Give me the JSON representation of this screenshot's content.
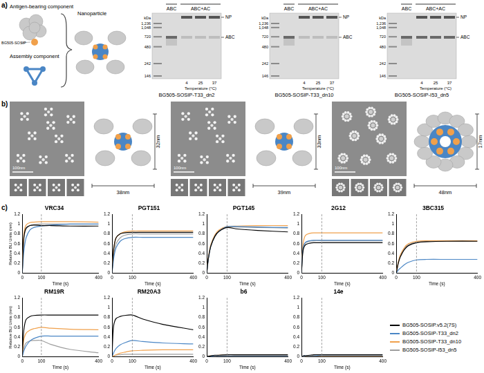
{
  "figure": {
    "a": {
      "label": "a)",
      "schematic": {
        "antigen_component": "Antigen-bearing component",
        "antigen_name": "BG505-SOSIP",
        "assembly_component": "Assembly component",
        "product": "Nanoparticle"
      },
      "gels": [
        {
          "caption": "BG505-SOSIP-T33_dn2",
          "ladder_unit": "kDa",
          "ladder": [
            {
              "value": 1236,
              "label": "1,236"
            },
            {
              "value": 1048,
              "label": "1,048"
            },
            720,
            480,
            242,
            146
          ],
          "lanes": [
            "ABC",
            "ABC+AC"
          ],
          "temperatures": [
            4,
            25,
            37
          ],
          "temperature_label": "Temperature (°C)",
          "bands": [
            "NP",
            "ABC"
          ]
        },
        {
          "caption": "BG505-SOSIP-T33_dn10",
          "ladder_unit": "kDa",
          "ladder": [
            {
              "value": 1236,
              "label": "1,236"
            },
            {
              "value": 1048,
              "label": "1,048"
            },
            720,
            480,
            242,
            146
          ],
          "lanes": [
            "ABC",
            "ABC+AC"
          ],
          "temperatures": [
            4,
            25,
            37
          ],
          "temperature_label": "Temperature (°C)",
          "bands": [
            "NP",
            "ABC"
          ]
        },
        {
          "caption": "BG505-SOSIP-I53_dn5",
          "ladder_unit": "kDa",
          "ladder": [
            {
              "value": 1236,
              "label": "1,236"
            },
            {
              "value": 1048,
              "label": "1,048"
            },
            720,
            480,
            242,
            146
          ],
          "lanes": [
            "ABC",
            "ABC+AC"
          ],
          "temperatures": [
            4,
            25,
            37
          ],
          "temperature_label": "Temperature (°C)",
          "bands": [
            "NP",
            "ABC"
          ]
        }
      ]
    },
    "b": {
      "label": "b)",
      "micrographs": [
        {
          "scale_bar": "100nm",
          "height": "32nm",
          "width": "38nm"
        },
        {
          "scale_bar": "100nm",
          "height": "33nm",
          "width": "39nm"
        },
        {
          "scale_bar": "100nm",
          "height": "17nm",
          "width": "48nm"
        }
      ]
    },
    "c": {
      "label": "c)"
    }
  },
  "chart_data": [
    {
      "type": "line",
      "title": "VRC34",
      "x_label": "Time (s)",
      "y_label": "Relative BLI Units (nm)",
      "x": [
        0,
        5,
        10,
        20,
        40,
        60,
        100,
        150,
        250,
        400
      ],
      "xlim": [
        0,
        400
      ],
      "xticks": [
        0,
        100,
        400
      ],
      "ylim": [
        0,
        1.2
      ],
      "yticks": [
        0,
        0.2,
        0.4,
        0.6,
        0.8,
        1,
        1.2
      ],
      "vline": 100,
      "series": [
        {
          "name": "BG505-SOSIP.v5.2(7S)",
          "color": "#000000",
          "values": [
            0,
            0.55,
            0.78,
            0.92,
            0.97,
            0.98,
            0.97,
            0.97,
            0.96,
            0.96
          ]
        },
        {
          "name": "BG505-SOSIP-T33_dn2",
          "color": "#4a86c5",
          "values": [
            0,
            0.3,
            0.5,
            0.72,
            0.88,
            0.93,
            0.96,
            0.98,
            1.0,
            1.0
          ]
        },
        {
          "name": "BG505-SOSIP-T33_dn10",
          "color": "#f0a04b",
          "values": [
            0,
            0.6,
            0.85,
            0.98,
            1.03,
            1.04,
            1.05,
            1.05,
            1.05,
            1.04
          ]
        },
        {
          "name": "BG505-SOSIP-I53_dn5",
          "color": "#9e9e9e",
          "values": [
            0,
            0.5,
            0.75,
            0.9,
            0.97,
            0.99,
            1.0,
            1.0,
            1.0,
            1.0
          ]
        }
      ]
    },
    {
      "type": "line",
      "title": "PGT151",
      "x_label": "Time (s)",
      "x": [
        0,
        5,
        10,
        20,
        40,
        60,
        100,
        150,
        250,
        400
      ],
      "xlim": [
        0,
        400
      ],
      "xticks": [
        0,
        100,
        400
      ],
      "ylim": [
        0,
        1.2
      ],
      "yticks": [
        0,
        0.2,
        0.4,
        0.6,
        0.8,
        1,
        1.2
      ],
      "vline": 100,
      "series": [
        {
          "name": "BG505-SOSIP.v5.2(7S)",
          "color": "#000000",
          "values": [
            0,
            0.35,
            0.55,
            0.72,
            0.8,
            0.82,
            0.83,
            0.83,
            0.83,
            0.83
          ]
        },
        {
          "name": "BG505-SOSIP-T33_dn2",
          "color": "#4a86c5",
          "values": [
            0,
            0.2,
            0.35,
            0.52,
            0.65,
            0.7,
            0.73,
            0.73,
            0.73,
            0.73
          ]
        },
        {
          "name": "BG505-SOSIP-T33_dn10",
          "color": "#f0a04b",
          "values": [
            0,
            0.35,
            0.55,
            0.72,
            0.8,
            0.84,
            0.86,
            0.86,
            0.86,
            0.86
          ]
        },
        {
          "name": "BG505-SOSIP-I53_dn5",
          "color": "#9e9e9e",
          "values": [
            0,
            0.25,
            0.42,
            0.6,
            0.72,
            0.77,
            0.8,
            0.8,
            0.8,
            0.8
          ]
        }
      ]
    },
    {
      "type": "line",
      "title": "PGT145",
      "x_label": "Time (s)",
      "x": [
        0,
        5,
        10,
        20,
        40,
        60,
        100,
        150,
        250,
        400
      ],
      "xlim": [
        0,
        400
      ],
      "xticks": [
        0,
        100,
        400
      ],
      "ylim": [
        0,
        1.2
      ],
      "yticks": [
        0,
        0.2,
        0.4,
        0.6,
        0.8,
        1,
        1.2
      ],
      "vline": 100,
      "series": [
        {
          "name": "BG505-SOSIP.v5.2(7S)",
          "color": "#000000",
          "values": [
            0,
            0.2,
            0.35,
            0.55,
            0.75,
            0.85,
            0.93,
            0.9,
            0.87,
            0.84
          ]
        },
        {
          "name": "BG505-SOSIP-T33_dn2",
          "color": "#4a86c5",
          "values": [
            0,
            0.2,
            0.35,
            0.55,
            0.75,
            0.85,
            0.95,
            0.95,
            0.94,
            0.93
          ]
        },
        {
          "name": "BG505-SOSIP-T33_dn10",
          "color": "#f0a04b",
          "values": [
            0,
            0.22,
            0.38,
            0.58,
            0.78,
            0.88,
            0.95,
            0.96,
            0.97,
            0.97
          ]
        },
        {
          "name": "BG505-SOSIP-I53_dn5",
          "color": "#9e9e9e",
          "values": [
            0,
            0.2,
            0.36,
            0.56,
            0.76,
            0.86,
            0.94,
            0.94,
            0.93,
            0.92
          ]
        }
      ]
    },
    {
      "type": "line",
      "title": "2G12",
      "x_label": "Time (s)",
      "x": [
        0,
        5,
        10,
        20,
        40,
        60,
        100,
        150,
        250,
        400
      ],
      "xlim": [
        0,
        400
      ],
      "xticks": [
        0,
        100,
        400
      ],
      "ylim": [
        0,
        1.2
      ],
      "yticks": [
        0,
        0.2,
        0.4,
        0.6,
        0.8,
        1,
        1.2
      ],
      "vline": 100,
      "series": [
        {
          "name": "BG505-SOSIP.v5.2(7S)",
          "color": "#000000",
          "values": [
            0,
            0.35,
            0.5,
            0.58,
            0.61,
            0.62,
            0.62,
            0.62,
            0.62,
            0.62
          ]
        },
        {
          "name": "BG505-SOSIP-T33_dn2",
          "color": "#4a86c5",
          "values": [
            0,
            0.4,
            0.55,
            0.63,
            0.66,
            0.67,
            0.67,
            0.67,
            0.67,
            0.67
          ]
        },
        {
          "name": "BG505-SOSIP-T33_dn10",
          "color": "#f0a04b",
          "values": [
            0,
            0.45,
            0.65,
            0.77,
            0.81,
            0.82,
            0.82,
            0.82,
            0.82,
            0.82
          ]
        },
        {
          "name": "BG505-SOSIP-I53_dn5",
          "color": "#9e9e9e",
          "values": [
            0,
            0.4,
            0.55,
            0.62,
            0.65,
            0.66,
            0.66,
            0.66,
            0.66,
            0.66
          ]
        }
      ]
    },
    {
      "type": "line",
      "title": "3BC315",
      "x_label": "Time (s)",
      "x": [
        0,
        5,
        10,
        20,
        40,
        60,
        100,
        150,
        250,
        400
      ],
      "xlim": [
        0,
        400
      ],
      "xticks": [
        0,
        100,
        400
      ],
      "ylim": [
        0,
        1.2
      ],
      "yticks": [
        0,
        0.2,
        0.4,
        0.6,
        0.8,
        1,
        1.2
      ],
      "vline": 100,
      "series": [
        {
          "name": "BG505-SOSIP.v5.2(7S)",
          "color": "#000000",
          "values": [
            0,
            0.1,
            0.2,
            0.33,
            0.48,
            0.56,
            0.62,
            0.64,
            0.65,
            0.65
          ]
        },
        {
          "name": "BG505-SOSIP-T33_dn2",
          "color": "#4a86c5",
          "values": [
            0,
            0.03,
            0.06,
            0.1,
            0.17,
            0.22,
            0.27,
            0.28,
            0.28,
            0.28
          ]
        },
        {
          "name": "BG505-SOSIP-T33_dn10",
          "color": "#f0a04b",
          "values": [
            0,
            0.12,
            0.22,
            0.37,
            0.52,
            0.6,
            0.65,
            0.66,
            0.66,
            0.66
          ]
        },
        {
          "name": "BG505-SOSIP-I53_dn5",
          "color": "#9e9e9e",
          "values": [
            0,
            0.1,
            0.2,
            0.35,
            0.5,
            0.58,
            0.63,
            0.64,
            0.65,
            0.65
          ]
        }
      ]
    },
    {
      "type": "line",
      "title": "RM19R",
      "x_label": "Time (s)",
      "y_label": "Relative BLI Units (nm)",
      "x": [
        0,
        5,
        10,
        20,
        40,
        60,
        100,
        150,
        250,
        400
      ],
      "xlim": [
        0,
        400
      ],
      "xticks": [
        0,
        100,
        400
      ],
      "ylim": [
        0,
        1.2
      ],
      "yticks": [
        0,
        0.2,
        0.4,
        0.6,
        0.8,
        1,
        1.2
      ],
      "vline": 100,
      "series": [
        {
          "name": "BG505-SOSIP.v5.2(7S)",
          "color": "#000000",
          "values": [
            0,
            0.4,
            0.6,
            0.76,
            0.82,
            0.84,
            0.85,
            0.85,
            0.85,
            0.85
          ]
        },
        {
          "name": "BG505-SOSIP-T33_dn2",
          "color": "#4a86c5",
          "values": [
            0,
            0.08,
            0.14,
            0.22,
            0.32,
            0.37,
            0.42,
            0.42,
            0.42,
            0.42
          ]
        },
        {
          "name": "BG505-SOSIP-T33_dn10",
          "color": "#f0a04b",
          "values": [
            0,
            0.25,
            0.38,
            0.48,
            0.54,
            0.57,
            0.6,
            0.58,
            0.56,
            0.55
          ]
        },
        {
          "name": "BG505-SOSIP-I53_dn5",
          "color": "#9e9e9e",
          "values": [
            0,
            0.12,
            0.2,
            0.28,
            0.32,
            0.33,
            0.33,
            0.25,
            0.15,
            0.08
          ]
        }
      ]
    },
    {
      "type": "line",
      "title": "RM20A3",
      "x_label": "Time (s)",
      "x": [
        0,
        5,
        10,
        20,
        40,
        60,
        100,
        150,
        250,
        400
      ],
      "xlim": [
        0,
        400
      ],
      "xticks": [
        0,
        100,
        400
      ],
      "ylim": [
        0,
        1.2
      ],
      "yticks": [
        0,
        0.2,
        0.4,
        0.6,
        0.8,
        1,
        1.2
      ],
      "vline": 100,
      "series": [
        {
          "name": "BG505-SOSIP.v5.2(7S)",
          "color": "#000000",
          "values": [
            0,
            0.5,
            0.68,
            0.78,
            0.82,
            0.84,
            0.85,
            0.77,
            0.66,
            0.55
          ]
        },
        {
          "name": "BG505-SOSIP-T33_dn2",
          "color": "#4a86c5",
          "values": [
            0,
            0.05,
            0.1,
            0.17,
            0.24,
            0.28,
            0.33,
            0.31,
            0.28,
            0.26
          ]
        },
        {
          "name": "BG505-SOSIP-T33_dn10",
          "color": "#f0a04b",
          "values": [
            0,
            0.01,
            0.02,
            0.04,
            0.07,
            0.09,
            0.12,
            0.13,
            0.14,
            0.14
          ]
        },
        {
          "name": "BG505-SOSIP-I53_dn5",
          "color": "#9e9e9e",
          "values": [
            0,
            0.01,
            0.02,
            0.03,
            0.04,
            0.05,
            0.05,
            0.05,
            0.05,
            0.05
          ]
        }
      ]
    },
    {
      "type": "line",
      "title": "b6",
      "x_label": "Time (s)",
      "x": [
        0,
        5,
        10,
        20,
        40,
        60,
        100,
        150,
        250,
        400
      ],
      "xlim": [
        0,
        400
      ],
      "xticks": [
        0,
        100,
        400
      ],
      "ylim": [
        0,
        1.2
      ],
      "yticks": [
        0,
        0.2,
        0.4,
        0.6,
        0.8,
        1,
        1.2
      ],
      "vline": 100,
      "series": [
        {
          "name": "BG505-SOSIP.v5.2(7S)",
          "color": "#000000",
          "values": [
            0,
            0.01,
            0.01,
            0.02,
            0.03,
            0.03,
            0.04,
            0.04,
            0.04,
            0.04
          ]
        },
        {
          "name": "BG505-SOSIP-T33_dn2",
          "color": "#4a86c5",
          "values": [
            0,
            0,
            0.01,
            0.01,
            0.02,
            0.02,
            0.02,
            0.02,
            0.02,
            0.02
          ]
        },
        {
          "name": "BG505-SOSIP-T33_dn10",
          "color": "#f0a04b",
          "values": [
            0,
            0.01,
            0.01,
            0.02,
            0.02,
            0.03,
            0.03,
            0.03,
            0.03,
            0.03
          ]
        },
        {
          "name": "BG505-SOSIP-I53_dn5",
          "color": "#9e9e9e",
          "values": [
            0,
            0,
            0.01,
            0.01,
            0.01,
            0.02,
            0.02,
            0.02,
            0.02,
            0.02
          ]
        }
      ]
    },
    {
      "type": "line",
      "title": "14e",
      "x_label": "Time (s)",
      "legend": "right",
      "x": [
        0,
        5,
        10,
        20,
        40,
        60,
        100,
        150,
        250,
        400
      ],
      "xlim": [
        0,
        400
      ],
      "xticks": [
        0,
        100,
        400
      ],
      "ylim": [
        0,
        1.2
      ],
      "yticks": [
        0,
        0.2,
        0.4,
        0.6,
        0.8,
        1,
        1.2
      ],
      "vline": 100,
      "series": [
        {
          "name": "BG505-SOSIP.v5.2(7S)",
          "color": "#000000",
          "values": [
            0,
            0.01,
            0.02,
            0.02,
            0.03,
            0.04,
            0.04,
            0.04,
            0.04,
            0.04
          ]
        },
        {
          "name": "BG505-SOSIP-T33_dn2",
          "color": "#4a86c5",
          "values": [
            0,
            0.01,
            0.01,
            0.02,
            0.02,
            0.02,
            0.03,
            0.03,
            0.03,
            0.03
          ]
        },
        {
          "name": "BG505-SOSIP-T33_dn10",
          "color": "#f0a04b",
          "values": [
            0,
            0.01,
            0.01,
            0.01,
            0.02,
            0.02,
            0.02,
            0.02,
            0.02,
            0.02
          ]
        },
        {
          "name": "BG505-SOSIP-I53_dn5",
          "color": "#9e9e9e",
          "values": [
            0,
            0,
            0,
            0.01,
            0.01,
            0.01,
            0.02,
            0.02,
            0.02,
            0.02
          ]
        }
      ]
    }
  ]
}
